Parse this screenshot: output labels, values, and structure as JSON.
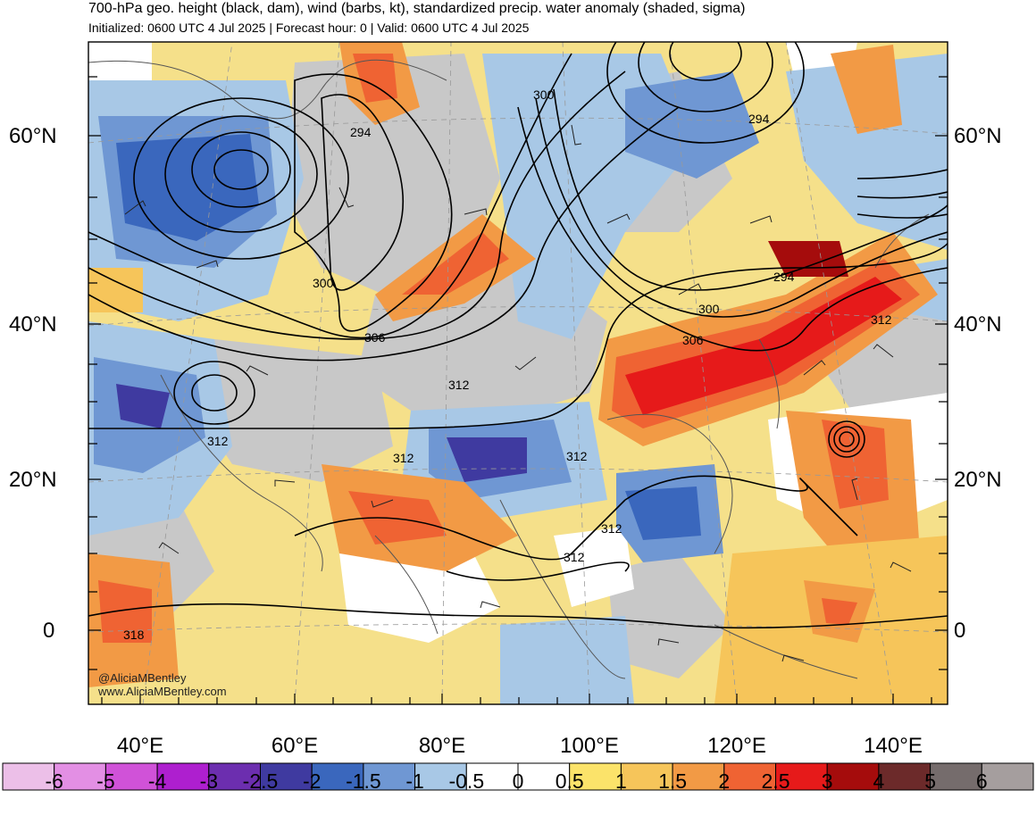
{
  "header": {
    "title": "700-hPa geo. height (black, dam), wind (barbs, kt), standardized precip. water anomaly (shaded, sigma)",
    "subtitle": "Initialized: 0600 UTC 4 Jul 2025 | Forecast hour: 0 | Valid: 0600 UTC 4 Jul 2025"
  },
  "map": {
    "lat_labels": [
      "60°N",
      "40°N",
      "20°N",
      "0"
    ],
    "lon_labels": [
      "40°E",
      "60°E",
      "80°E",
      "100°E",
      "120°E",
      "140°E"
    ],
    "contour_labels": [
      "294",
      "300",
      "294",
      "300",
      "306",
      "312",
      "312",
      "312",
      "312",
      "294",
      "300",
      "306",
      "312",
      "312",
      "312",
      "318"
    ],
    "credit_line1": "@AliciaMBentley",
    "credit_line2": "www.AliciaMBentley.com"
  },
  "colorbar": {
    "labels": [
      "-6",
      "-5",
      "-4",
      "-3",
      "-2.5",
      "-2",
      "-1.5",
      "-1",
      "-0.5",
      "0",
      "0.5",
      "1",
      "1.5",
      "2",
      "2.5",
      "3",
      "4",
      "5",
      "6"
    ],
    "colors": [
      "#ecbfe8",
      "#e38fe4",
      "#d052d8",
      "#ae1fcf",
      "#6c2eaf",
      "#3f3aa0",
      "#3a67bd",
      "#6f97d3",
      "#a8c8e6",
      "#ffffff",
      "#ffffff",
      "#fbe36a",
      "#f6c55a",
      "#f29a45",
      "#ef6333",
      "#e61a1a",
      "#a50c0c",
      "#6c2a2a",
      "#756c6c",
      "#a59e9e"
    ]
  },
  "anomaly_colors": {
    "neg_strong": "#3f3aa0",
    "neg_mid": "#3a67bd",
    "neg_light": "#6f97d3",
    "neg_faint": "#a8c8e6",
    "gray": "#c8c8c8",
    "pos_light": "#fbe36a",
    "pos_mid": "#f6c55a",
    "pos_orange": "#f29a45",
    "pos_red": "#ef6333",
    "pos_strong": "#e61a1a",
    "pos_dark": "#a50c0c"
  }
}
